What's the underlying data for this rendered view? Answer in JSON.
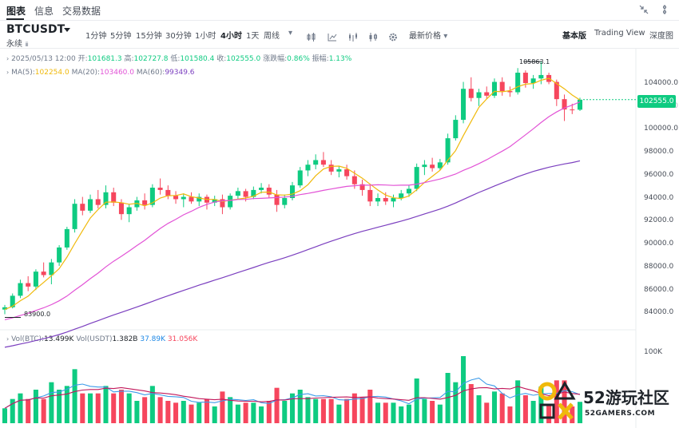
{
  "tabs": [
    {
      "label": "图表",
      "active": true
    },
    {
      "label": "信息",
      "active": false
    },
    {
      "label": "交易数据",
      "active": false
    }
  ],
  "symbol": {
    "name": "BTCUSDT",
    "subtitle": "永续"
  },
  "toolbar": {
    "intervals": [
      "1分钟",
      "5分钟",
      "15分钟",
      "30分钟",
      "1小时",
      "4小时",
      "1天",
      "周线"
    ],
    "active_interval": "4小时",
    "price_type": "最新价格",
    "icons": [
      "candle-style-icon",
      "indicator-icon",
      "drawing-icon",
      "compare-icon",
      "settings-icon"
    ]
  },
  "view_options": [
    {
      "label": "基本版",
      "active": true
    },
    {
      "label": "Trading View",
      "active": false
    },
    {
      "label": "深度图",
      "active": false
    }
  ],
  "ohlc": {
    "date": "2025/05/13 12:00",
    "open_label": "开:",
    "open": "101681.3",
    "high_label": "高:",
    "high": "102727.8",
    "low_label": "低:",
    "low": "101580.4",
    "close_label": "收:",
    "close": "102555.0",
    "change_label": "涨跌幅:",
    "change": "0.86%",
    "amplitude_label": "振幅:",
    "amplitude": "1.13%"
  },
  "ma": {
    "ma5_label": "MA(5):",
    "ma5": "102254.0",
    "ma20_label": "MA(20):",
    "ma20": "103460.0",
    "ma60_label": "MA(60):",
    "ma60": "99349.6"
  },
  "vol": {
    "btc_label": "Vol(BTC):",
    "btc": "13.499K",
    "usdt_label": "Vol(USDT)",
    "usdt": "1.382B",
    "ma1": "37.89K",
    "ma2": "31.056K",
    "axis_label": "100K"
  },
  "price_axis": {
    "ticks": [
      "104000.0",
      "102000.0",
      "100000.0",
      "98000.0",
      "96000.0",
      "94000.0",
      "92000.0",
      "90000.0",
      "88000.0",
      "86000.0",
      "84000.0"
    ],
    "current_price": "102555.0"
  },
  "markers": {
    "high": "105863.1",
    "low": "83900.0"
  },
  "watermark": {
    "title": "52游玩社区",
    "subtitle": "52GAMERS.COM"
  },
  "colors": {
    "up": "#0ecb81",
    "down": "#f6465d",
    "ma5": "#f0b90b",
    "ma20": "#e253d6",
    "ma60": "#7b3fbf",
    "vol_ma1": "#3d9be9",
    "vol_ma2": "#c2185b"
  },
  "chart_data": {
    "type": "candlestick",
    "interval": "4小时",
    "price_range": [
      83000,
      107000
    ],
    "volume_axis_max": 100000,
    "series": [
      {
        "name": "MA(5)",
        "value": 102254.0
      },
      {
        "name": "MA(20)",
        "value": 103460.0
      },
      {
        "name": "MA(60)",
        "value": 99349.6
      }
    ],
    "candles": [
      [
        84300,
        84700,
        83900,
        84500
      ],
      [
        84500,
        85700,
        84400,
        85500
      ],
      [
        85500,
        86900,
        85300,
        86600
      ],
      [
        86600,
        87200,
        85900,
        86300
      ],
      [
        86300,
        87800,
        86000,
        87600
      ],
      [
        87600,
        88400,
        87100,
        87300
      ],
      [
        87300,
        88700,
        86500,
        88400
      ],
      [
        88400,
        89900,
        88100,
        89700
      ],
      [
        89700,
        91500,
        89500,
        91300
      ],
      [
        91300,
        93900,
        91000,
        93500
      ],
      [
        93500,
        94100,
        92500,
        92900
      ],
      [
        92900,
        94300,
        92700,
        93900
      ],
      [
        93900,
        94700,
        93100,
        93400
      ],
      [
        93400,
        95100,
        93100,
        94500
      ],
      [
        94500,
        94900,
        93300,
        93600
      ],
      [
        93600,
        93900,
        92100,
        92600
      ],
      [
        92600,
        93500,
        91900,
        93200
      ],
      [
        93200,
        94100,
        92900,
        93800
      ],
      [
        93800,
        94400,
        93000,
        93400
      ],
      [
        93400,
        95200,
        93200,
        94900
      ],
      [
        94900,
        95700,
        94300,
        94700
      ],
      [
        94700,
        95100,
        93900,
        94200
      ],
      [
        94200,
        94600,
        93500,
        93900
      ],
      [
        93900,
        94400,
        93200,
        94100
      ],
      [
        94100,
        94500,
        93500,
        93700
      ],
      [
        93700,
        94400,
        93300,
        94100
      ],
      [
        94100,
        94300,
        93000,
        93600
      ],
      [
        93600,
        94200,
        93300,
        93900
      ],
      [
        93900,
        94300,
        92600,
        93200
      ],
      [
        93200,
        94400,
        93000,
        94200
      ],
      [
        94200,
        94900,
        93900,
        94600
      ],
      [
        94600,
        94800,
        93700,
        94100
      ],
      [
        94100,
        95000,
        93900,
        94700
      ],
      [
        94700,
        95300,
        94400,
        94900
      ],
      [
        94900,
        95200,
        94000,
        94300
      ],
      [
        94300,
        94700,
        92800,
        93400
      ],
      [
        93400,
        94300,
        93100,
        94000
      ],
      [
        94000,
        95400,
        93800,
        95100
      ],
      [
        95100,
        96700,
        94900,
        96400
      ],
      [
        96400,
        97300,
        95900,
        96900
      ],
      [
        96900,
        97800,
        96500,
        97300
      ],
      [
        97300,
        98000,
        96700,
        96900
      ],
      [
        96900,
        97300,
        96000,
        96300
      ],
      [
        96300,
        96800,
        95800,
        96500
      ],
      [
        96500,
        96900,
        95600,
        95900
      ],
      [
        95900,
        96400,
        94800,
        95200
      ],
      [
        95200,
        95600,
        94200,
        94700
      ],
      [
        94700,
        95100,
        93300,
        93700
      ],
      [
        93700,
        94400,
        93300,
        94000
      ],
      [
        94000,
        94500,
        93400,
        93700
      ],
      [
        93700,
        94300,
        93200,
        94000
      ],
      [
        94000,
        94700,
        93800,
        94400
      ],
      [
        94400,
        95100,
        94100,
        94800
      ],
      [
        94800,
        97000,
        94600,
        96700
      ],
      [
        96700,
        97300,
        96000,
        96900
      ],
      [
        96900,
        97500,
        96300,
        96600
      ],
      [
        96600,
        97400,
        96400,
        97100
      ],
      [
        97100,
        99600,
        96900,
        99200
      ],
      [
        99200,
        101200,
        99000,
        100800
      ],
      [
        100800,
        104100,
        100500,
        103500
      ],
      [
        103500,
        104500,
        102400,
        102700
      ],
      [
        102700,
        103500,
        102000,
        103200
      ],
      [
        103200,
        103700,
        102600,
        102900
      ],
      [
        102900,
        104400,
        102700,
        104100
      ],
      [
        104100,
        104500,
        102900,
        103300
      ],
      [
        103300,
        103700,
        102800,
        103200
      ],
      [
        103200,
        105300,
        103000,
        104900
      ],
      [
        104900,
        105100,
        103600,
        104000
      ],
      [
        104000,
        104700,
        103500,
        104400
      ],
      [
        104400,
        105863.1,
        103900,
        104700
      ],
      [
        104700,
        104900,
        103900,
        104100
      ],
      [
        104100,
        104300,
        102000,
        102600
      ],
      [
        102600,
        103000,
        100700,
        101700
      ],
      [
        101700,
        102200,
        101300,
        101681.3
      ],
      [
        101681.3,
        102727.8,
        101580.4,
        102555.0
      ]
    ]
  }
}
